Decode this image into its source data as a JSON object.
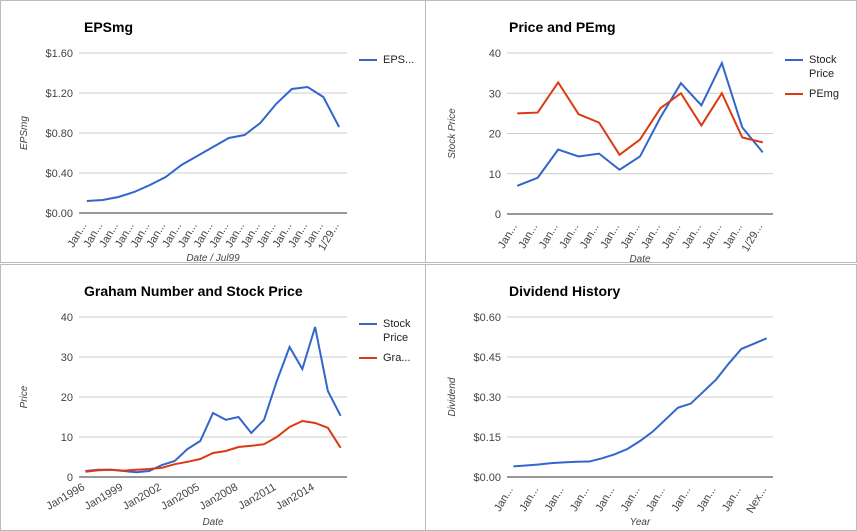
{
  "chart_data": [
    {
      "type": "line",
      "title": "EPSmg",
      "y_label": "EPSmg",
      "x_label": "Date / Jul99",
      "categories": [
        "Jan...",
        "Jan...",
        "Jan...",
        "Jan...",
        "Jan...",
        "Jan...",
        "Jan...",
        "Jan...",
        "Jan...",
        "Jan...",
        "Jan...",
        "Jan...",
        "Jan...",
        "Jan...",
        "Jan...",
        "Jan...",
        "1/29..."
      ],
      "series": [
        {
          "name": "EPS...",
          "color": "#3366cc",
          "values": [
            0.12,
            0.13,
            0.16,
            0.21,
            0.28,
            0.36,
            0.48,
            0.57,
            0.66,
            0.75,
            0.78,
            0.9,
            1.09,
            1.24,
            1.26,
            1.16,
            0.86
          ]
        }
      ],
      "ylim": [
        0,
        1.6
      ],
      "yticks": [
        {
          "value": 0,
          "label": "$0.00"
        },
        {
          "value": 0.4,
          "label": "$0.40"
        },
        {
          "value": 0.8,
          "label": "$0.80"
        },
        {
          "value": 1.2,
          "label": "$1.20"
        },
        {
          "value": 1.6,
          "label": "$1.60"
        }
      ],
      "grid": true,
      "legend": "right"
    },
    {
      "type": "line",
      "title": "Price and PEmg",
      "y_label": "Stock Price",
      "x_label": "Date",
      "categories": [
        "Jan...",
        "Jan...",
        "Jan...",
        "Jan...",
        "Jan...",
        "Jan...",
        "Jan...",
        "Jan...",
        "Jan...",
        "Jan...",
        "Jan...",
        "Jan...",
        "1/29..."
      ],
      "series": [
        {
          "name": "Stock Price",
          "color": "#3366cc",
          "values": [
            7,
            9,
            16,
            14.3,
            15,
            11,
            14.3,
            24,
            32.5,
            27,
            37.5,
            21.5,
            15.3
          ]
        },
        {
          "name": "PEmg",
          "color": "#dc3912",
          "values": [
            25,
            25.2,
            32.7,
            24.8,
            22.7,
            14.7,
            18.5,
            26.3,
            30,
            22,
            30,
            19,
            17.8
          ]
        }
      ],
      "ylim": [
        0,
        40
      ],
      "yticks": [
        0,
        10,
        20,
        30,
        40
      ],
      "grid": true,
      "legend": "right"
    },
    {
      "type": "line",
      "title": "Graham Number and Stock Price",
      "y_label": "Price",
      "x_label": "Date",
      "categories": [
        "Jan1996",
        null,
        null,
        "Jan1999",
        null,
        null,
        "Jan2002",
        null,
        null,
        "Jan2005",
        null,
        null,
        "Jan2008",
        null,
        null,
        "Jan2011",
        null,
        null,
        "Jan2014",
        null,
        null
      ],
      "series": [
        {
          "name": "Stock Price",
          "color": "#3366cc",
          "values": [
            1.5,
            1.8,
            1.8,
            1.5,
            1.2,
            1.5,
            3,
            4,
            7,
            9,
            16,
            14.3,
            15,
            11,
            14.3,
            24,
            32.5,
            27,
            37.5,
            21.5,
            15.3
          ]
        },
        {
          "name": "Gra...",
          "color": "#dc3912",
          "values": [
            1.3,
            1.7,
            1.8,
            1.6,
            1.8,
            2.0,
            2.3,
            3.2,
            3.8,
            4.5,
            6.0,
            6.5,
            7.5,
            7.8,
            8.2,
            10.0,
            12.5,
            14.0,
            13.5,
            12.3,
            7.3
          ]
        }
      ],
      "ylim": [
        0,
        40
      ],
      "yticks": [
        0,
        10,
        20,
        30,
        40
      ],
      "grid": true,
      "legend": "right"
    },
    {
      "type": "line",
      "title": "Dividend History",
      "y_label": "Dividend",
      "x_label": "Year",
      "categories": [
        "Jan...",
        null,
        "Jan...",
        null,
        "Jan...",
        null,
        "Jan...",
        null,
        "Jan...",
        null,
        "Jan...",
        null,
        "Jan...",
        null,
        "Jan...",
        null,
        "Jan...",
        null,
        "Jan...",
        null,
        "Nex..."
      ],
      "series": [
        {
          "color": "#3366cc",
          "values": [
            0.04,
            0.043,
            0.047,
            0.052,
            0.055,
            0.057,
            0.058,
            0.07,
            0.085,
            0.105,
            0.135,
            0.17,
            0.215,
            0.26,
            0.275,
            0.32,
            0.365,
            0.425,
            0.48,
            0.5,
            0.52
          ]
        }
      ],
      "ylim": [
        0,
        0.6
      ],
      "yticks": [
        {
          "value": 0,
          "label": "$0.00"
        },
        {
          "value": 0.15,
          "label": "$0.15"
        },
        {
          "value": 0.3,
          "label": "$0.30"
        },
        {
          "value": 0.45,
          "label": "$0.45"
        },
        {
          "value": 0.6,
          "label": "$0.60"
        }
      ],
      "grid": true
    }
  ]
}
